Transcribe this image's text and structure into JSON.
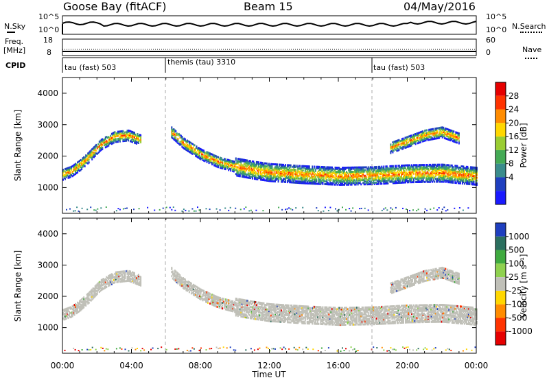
{
  "header": {
    "station": "Goose Bay (fitACF)",
    "beam": "Beam 15",
    "date": "04/May/2016"
  },
  "strip_panels": {
    "noise": {
      "left_label": "N.Sky",
      "right_label": "N.Search",
      "left_ticks": [
        "10^5",
        "10^0"
      ],
      "right_ticks": [
        "10^5",
        "10^0"
      ]
    },
    "freq": {
      "left_label": "Freq.",
      "left_unit": "[MHz]",
      "right_label": "Nave",
      "left_ticks": [
        "18",
        "8"
      ],
      "right_ticks": [
        "60",
        "0"
      ]
    },
    "cpid": {
      "label": "CPID"
    }
  },
  "cpid_segments": [
    {
      "label": "tau (fast) 503",
      "start_hour": 0
    },
    {
      "label": "themis (tau) 3310",
      "start_hour": 6
    },
    {
      "label": "tau (fast) 503",
      "start_hour": 18
    }
  ],
  "chart_data": [
    {
      "type": "heatmap",
      "name": "power",
      "ylabel": "Slant Range [km]",
      "yticks": [
        "1000",
        "2000",
        "3000",
        "4000"
      ],
      "ylim": [
        180,
        4500
      ],
      "xlim": [
        0,
        24
      ],
      "colorbar_label": "Power [dB]",
      "colorbar_ticks": [
        "4",
        "8",
        "12",
        "16",
        "20",
        "24",
        "28"
      ],
      "colors": [
        "#1a1aff",
        "#1f3fbf",
        "#3a8c8c",
        "#44aa55",
        "#9acd32",
        "#ffd700",
        "#ff8c00",
        "#ff3300",
        "#e60000"
      ]
    },
    {
      "type": "heatmap",
      "name": "velocity",
      "ylabel": "Slant Range [km]",
      "yticks": [
        "1000",
        "2000",
        "3000",
        "4000"
      ],
      "ylim": [
        180,
        4500
      ],
      "xlim": [
        0,
        24
      ],
      "colorbar_label": "Velocity [m s⁻¹]",
      "colorbar_ticks": [
        "1000",
        "500",
        "100",
        "25",
        "-25",
        "-100",
        "-500",
        "-1000"
      ],
      "colors": [
        "#1f3fbf",
        "#2b6f5f",
        "#3faa3f",
        "#8fd14f",
        "#c0c0b8",
        "#ffd700",
        "#ff8c00",
        "#ff3300",
        "#e60000"
      ]
    }
  ],
  "xaxis": {
    "label": "Time UT",
    "ticks": [
      "00:00",
      "04:00",
      "08:00",
      "12:00",
      "16:00",
      "20:00",
      "00:00"
    ]
  },
  "echo_bands": [
    {
      "hours": [
        0,
        0.5,
        1,
        1.5,
        2.2,
        3,
        3.8,
        4.5
      ],
      "ranges": [
        1450,
        1550,
        1750,
        2000,
        2400,
        2650,
        2700,
        2550
      ]
    },
    {
      "hours": [
        6.3,
        7,
        8,
        9,
        10,
        11,
        12,
        14,
        16,
        18,
        20,
        22,
        23,
        24
      ],
      "ranges": [
        2800,
        2450,
        2100,
        1850,
        1700,
        1600,
        1520,
        1450,
        1400,
        1420,
        1480,
        1500,
        1450,
        1400
      ]
    },
    {
      "hours": [
        19,
        20,
        21,
        22,
        23
      ],
      "ranges": [
        2300,
        2500,
        2700,
        2800,
        2600
      ]
    }
  ]
}
